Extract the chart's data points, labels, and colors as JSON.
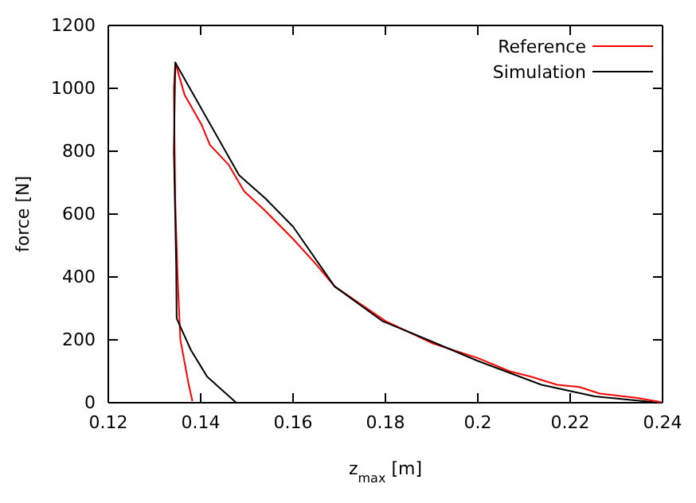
{
  "chart_data": {
    "type": "line",
    "xlabel": "z$_{max}$ [m]",
    "ylabel": "force [N]",
    "xlim": [
      0.12,
      0.24
    ],
    "ylim": [
      0,
      1200
    ],
    "xticks": [
      0.12,
      0.14,
      0.16,
      0.18,
      0.2,
      0.22,
      0.24
    ],
    "yticks": [
      0,
      200,
      400,
      600,
      800,
      1000,
      1200
    ],
    "grid": false,
    "legend": "top right",
    "marker": "none",
    "line_style": "solid",
    "series": [
      {
        "name": "Reference",
        "color": "#ff0000",
        "x": [
          0.1382,
          0.1373,
          0.1356,
          0.135,
          0.1345,
          0.1342,
          0.1345,
          0.1365,
          0.1402,
          0.142,
          0.146,
          0.1494,
          0.154,
          0.16,
          0.165,
          0.169,
          0.175,
          0.18,
          0.19,
          0.2,
          0.2069,
          0.2115,
          0.2172,
          0.222,
          0.2264,
          0.2345,
          0.2397
        ],
        "values": [
          5,
          66,
          201,
          400,
          640,
          1000,
          1082,
          980,
          884,
          820,
          758,
          673,
          610,
          521,
          440,
          370,
          310,
          260,
          190,
          142,
          100,
          83,
          57,
          50,
          29,
          15,
          2
        ]
      },
      {
        "name": "Simulation",
        "color": "#000000",
        "x": [
          0.1477,
          0.1414,
          0.1379,
          0.1348,
          0.1347,
          0.1342,
          0.1345,
          0.1483,
          0.154,
          0.16,
          0.169,
          0.1793,
          0.19,
          0.2,
          0.2138,
          0.2253,
          0.238
        ],
        "values": [
          0,
          83,
          167,
          268,
          437,
          800,
          1082,
          724,
          650,
          560,
          370,
          260,
          195,
          133,
          57,
          20,
          2
        ]
      }
    ]
  }
}
